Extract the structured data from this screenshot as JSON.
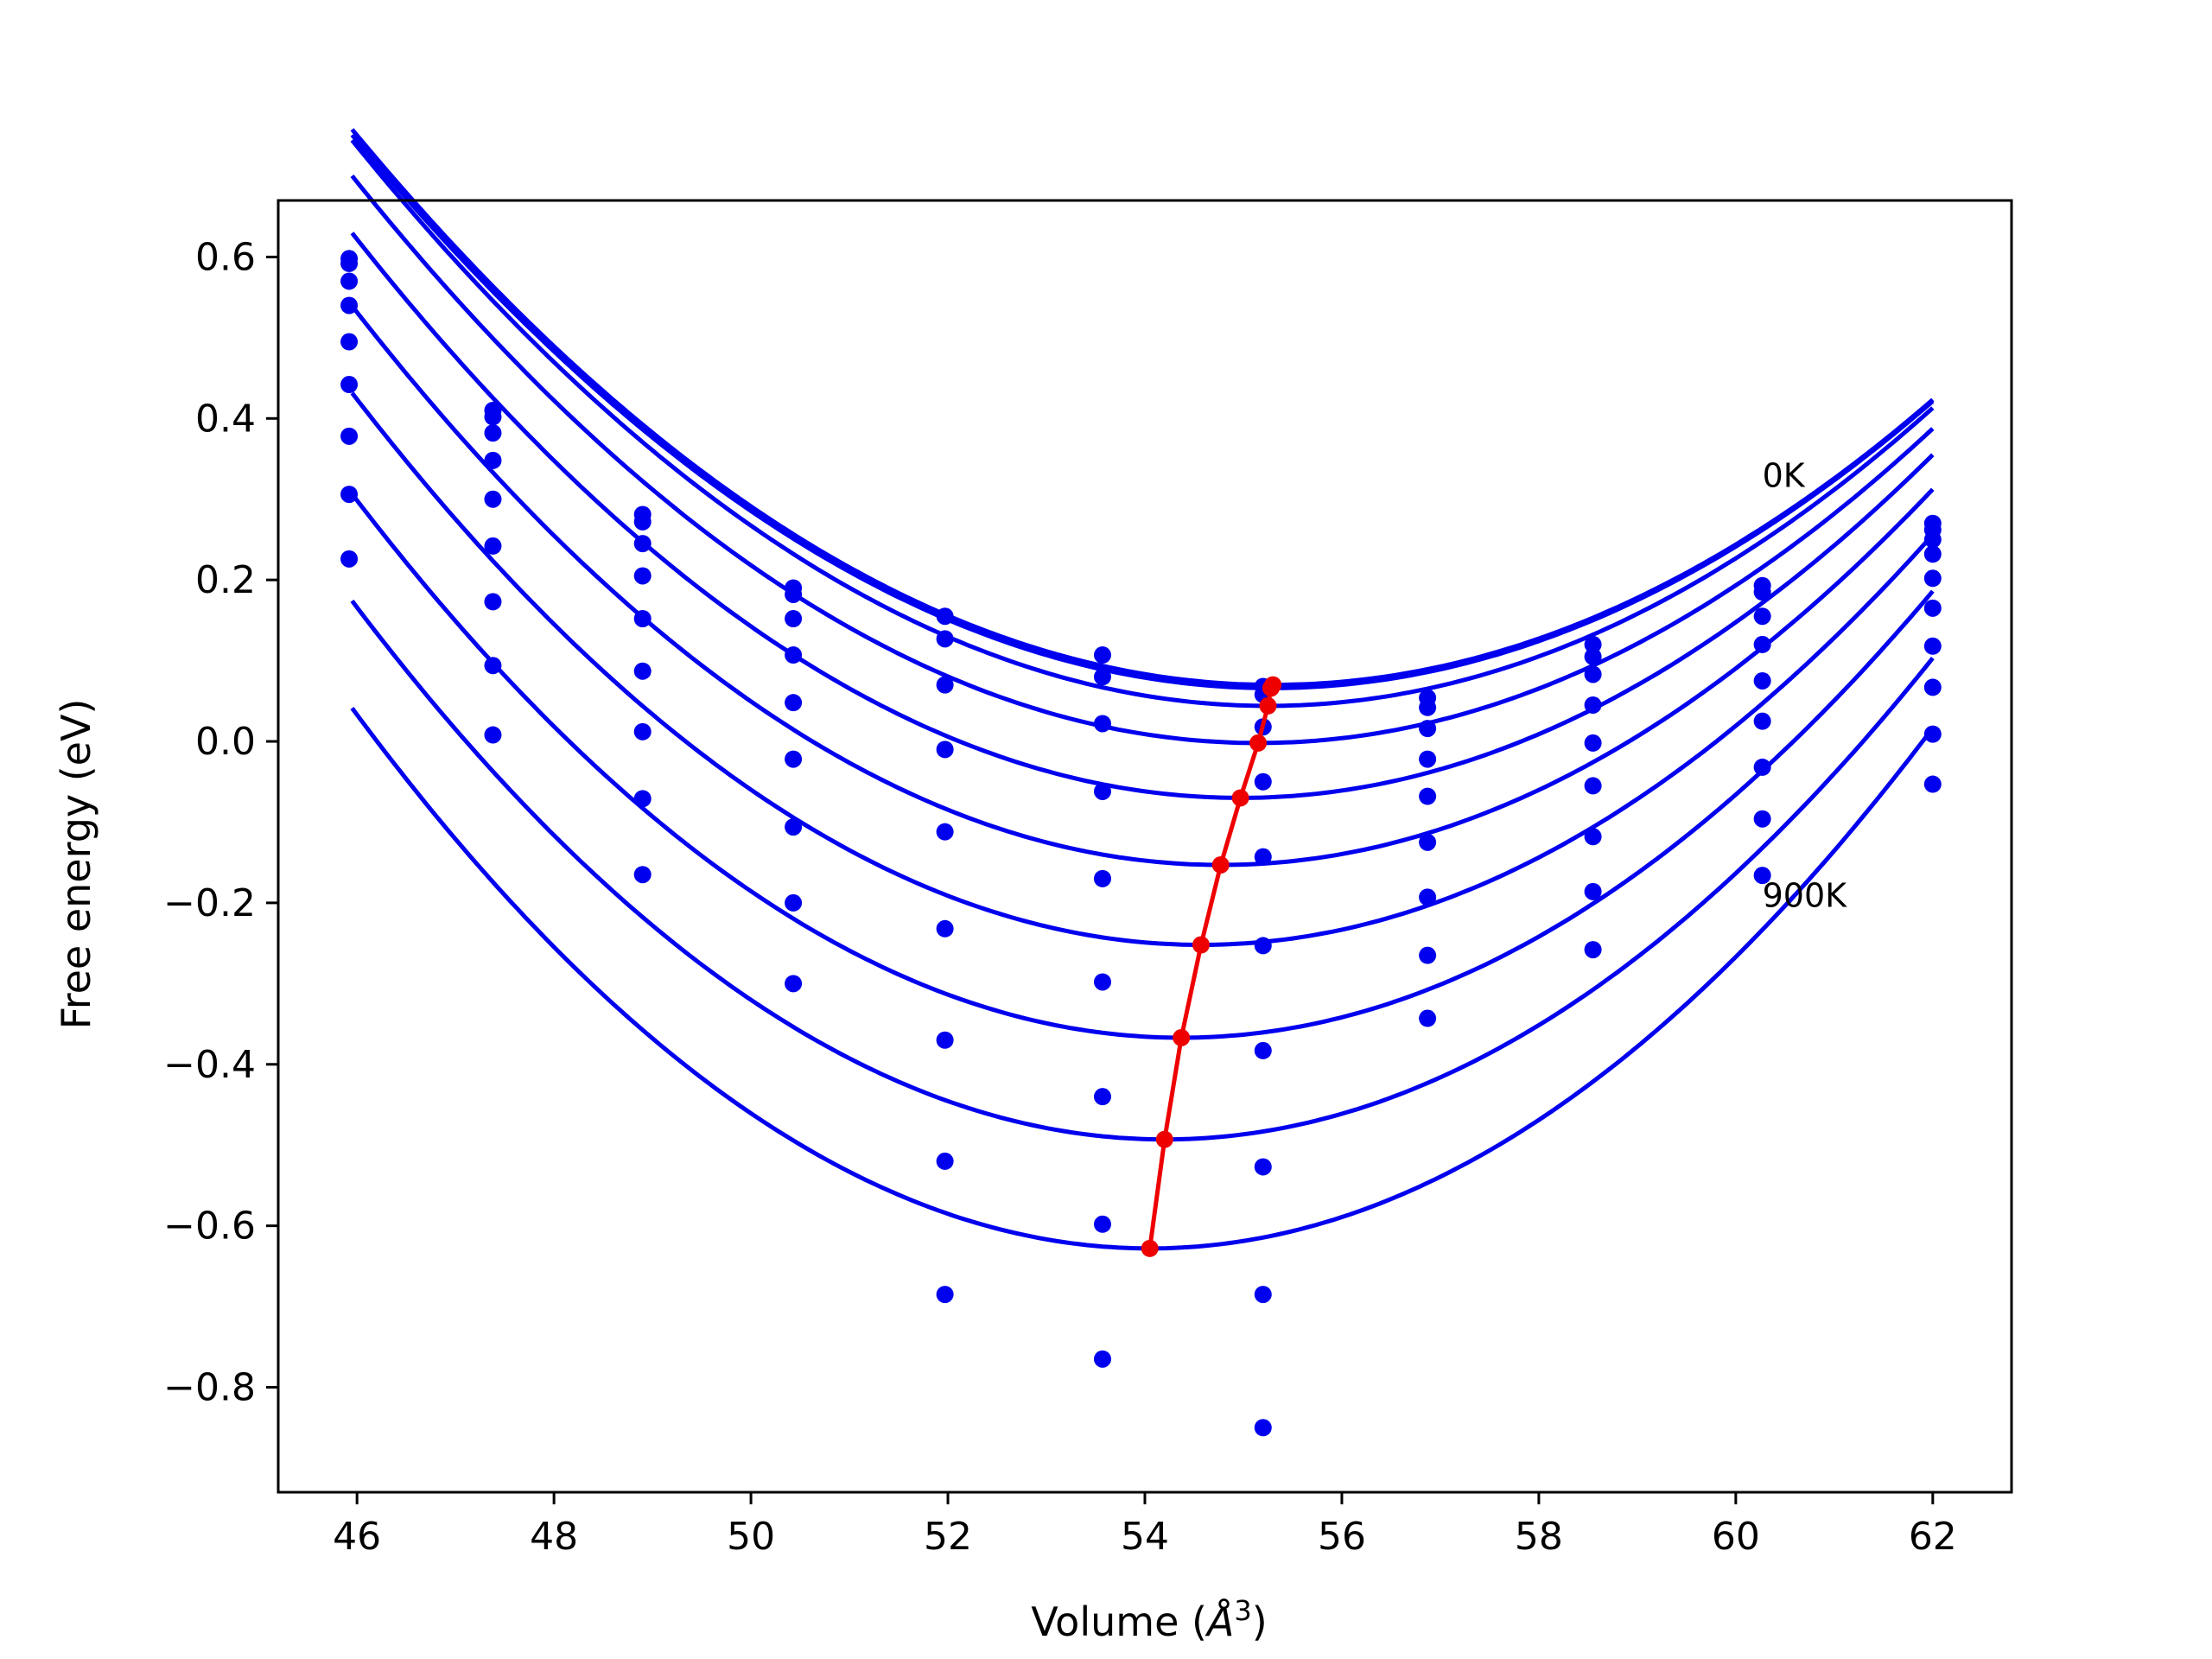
{
  "chart_data": {
    "type": "scatter",
    "title": "",
    "xlabel_prefix": "Volume (",
    "xlabel_symbol": "Å",
    "xlabel_superscript": "3",
    "xlabel_suffix": ")",
    "ylabel": "Free energy (eV)",
    "xlim": [
      45.2,
      62.8
    ],
    "ylim": [
      -0.93,
      0.67
    ],
    "x_ticks": [
      46,
      48,
      50,
      52,
      54,
      56,
      58,
      60,
      62
    ],
    "x_tick_labels": [
      "46",
      "48",
      "50",
      "52",
      "54",
      "56",
      "58",
      "60",
      "62"
    ],
    "y_ticks": [
      -0.8,
      -0.6,
      -0.4,
      -0.2,
      0.0,
      0.2,
      0.4,
      0.6
    ],
    "y_tick_labels": [
      "−0.8",
      "−0.6",
      "−0.4",
      "−0.2",
      "0.0",
      "0.2",
      "0.4",
      "0.6"
    ],
    "grid": false,
    "colors": {
      "series": "#0000ee",
      "minimum_line": "#ee0000",
      "frame": "#000000"
    },
    "x_volumes": [
      45.92,
      47.38,
      48.9,
      50.43,
      51.97,
      53.57,
      55.2,
      56.87,
      58.55,
      60.27,
      62.0
    ],
    "series": [
      {
        "points": [
          0.598,
          0.41,
          0.281,
          0.19,
          0.155,
          0.107,
          0.068,
          0.054,
          0.12,
          0.193,
          0.27
        ],
        "fit": {
          "a": 0.00787,
          "v0": 55.3,
          "e0": 0.07,
          "vmin": 45.95,
          "vmax": 62.0
        }
      },
      {
        "points": [
          0.592,
          0.402,
          0.272,
          0.182,
          0.127,
          0.08,
          0.058,
          0.042,
          0.105,
          0.185,
          0.262
        ],
        "fit": {
          "a": 0.00787,
          "v0": 55.28,
          "e0": 0.066,
          "vmin": 45.95,
          "vmax": 62.0
        }
      },
      {
        "points": [
          0.57,
          0.382,
          0.245,
          0.152,
          0.07,
          0.022,
          0.018,
          0.016,
          0.083,
          0.155,
          0.25
        ],
        "fit": {
          "a": 0.0081,
          "v0": 55.25,
          "e0": 0.044,
          "vmin": 45.95,
          "vmax": 62.0
        }
      },
      {
        "points": [
          0.54,
          0.348,
          0.205,
          0.107,
          -0.01,
          -0.062,
          -0.05,
          -0.022,
          0.045,
          0.12,
          0.232
        ],
        "fit": {
          "a": 0.0083,
          "v0": 55.15,
          "e0": -0.002,
          "vmin": 45.95,
          "vmax": 62.0
        }
      },
      {
        "points": [
          0.495,
          0.3,
          0.152,
          0.048,
          -0.112,
          -0.17,
          -0.143,
          -0.068,
          -0.002,
          0.075,
          0.202
        ],
        "fit": {
          "a": 0.0086,
          "v0": 54.97,
          "e0": -0.07,
          "vmin": 45.95,
          "vmax": 62.0
        }
      },
      {
        "points": [
          0.442,
          0.242,
          0.087,
          -0.022,
          -0.232,
          -0.298,
          -0.253,
          -0.125,
          -0.055,
          0.025,
          0.165
        ],
        "fit": {
          "a": 0.0089,
          "v0": 54.77,
          "e0": -0.153,
          "vmin": 45.95,
          "vmax": 62.0
        }
      },
      {
        "points": [
          0.378,
          0.173,
          0.012,
          -0.106,
          -0.37,
          -0.44,
          -0.383,
          -0.193,
          -0.118,
          -0.032,
          0.118
        ],
        "fit": {
          "a": 0.0092,
          "v0": 54.57,
          "e0": -0.252,
          "vmin": 45.95,
          "vmax": 62.0
        }
      },
      {
        "points": [
          0.306,
          0.094,
          -0.071,
          -0.2,
          -0.52,
          -0.598,
          -0.527,
          -0.265,
          -0.186,
          -0.096,
          0.067
        ],
        "fit": {
          "a": 0.0095,
          "v0": 54.37,
          "e0": -0.367,
          "vmin": 45.95,
          "vmax": 62.0
        }
      },
      {
        "points": [
          0.226,
          0.008,
          -0.165,
          -0.3,
          -0.685,
          -0.765,
          -0.685,
          -0.343,
          -0.258,
          -0.166,
          0.009
        ],
        "fit": {
          "a": 0.0098,
          "v0": 54.2,
          "e0": -0.493,
          "vmin": 45.95,
          "vmax": 62.0
        }
      },
      {
        "points": [
          null,
          null,
          null,
          null,
          null,
          null,
          -0.85,
          null,
          null,
          null,
          -0.053
        ],
        "fit": {
          "a": 0.0102,
          "v0": 54.05,
          "e0": -0.628,
          "vmin": 45.95,
          "vmax": 62.0
        }
      }
    ],
    "minimum_line": {
      "x": [
        55.3,
        55.28,
        55.25,
        55.15,
        54.97,
        54.77,
        54.57,
        54.37,
        54.2,
        54.05
      ],
      "y": [
        0.07,
        0.066,
        0.044,
        -0.002,
        -0.07,
        -0.153,
        -0.252,
        -0.367,
        -0.493,
        -0.628
      ]
    },
    "annotations": [
      {
        "text": "0K",
        "x": 60.27,
        "y": 0.315
      },
      {
        "text": "900K",
        "x": 60.27,
        "y": -0.205
      }
    ]
  }
}
